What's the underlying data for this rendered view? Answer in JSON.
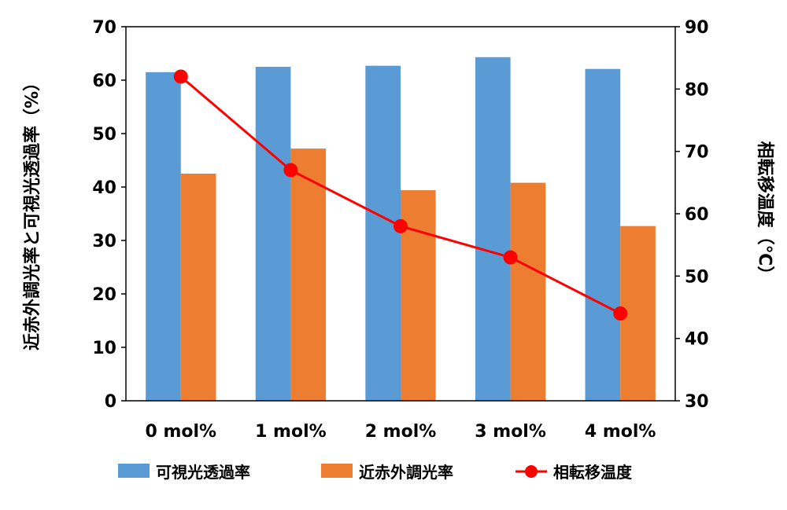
{
  "chart_data": {
    "type": "bar",
    "categories": [
      "0 mol%",
      "1 mol%",
      "2 mol%",
      "3 mol%",
      "4 mol%"
    ],
    "series": [
      {
        "name": "可視光透過率",
        "kind": "bar",
        "axis": "left",
        "color": "#5B9BD5",
        "values": [
          61.5,
          62.5,
          62.7,
          64.3,
          62.1
        ]
      },
      {
        "name": "近赤外調光率",
        "kind": "bar",
        "axis": "left",
        "color": "#ED7D31",
        "values": [
          42.5,
          47.2,
          39.4,
          40.8,
          32.7
        ]
      },
      {
        "name": "相転移温度",
        "kind": "line",
        "axis": "right",
        "color": "#FF0000",
        "values": [
          82,
          67,
          58,
          53,
          44
        ]
      }
    ],
    "ylabel_left": "近赤外調光率と可視光透過率（%）",
    "ylabel_right": "相転移温度（℃）",
    "ylim_left": [
      0,
      70
    ],
    "ylim_right": [
      30,
      90
    ],
    "yticks_left": [
      "0",
      "10",
      "20",
      "30",
      "40",
      "50",
      "60",
      "70"
    ],
    "yticks_right": [
      "30",
      "40",
      "50",
      "60",
      "70",
      "80",
      "90"
    ],
    "grid": false,
    "legend_position": "bottom"
  }
}
